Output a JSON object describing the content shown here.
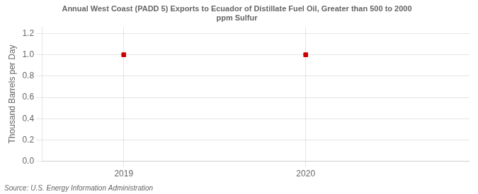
{
  "chart_data": {
    "type": "scatter",
    "title": "Annual West Coast (PADD 5) Exports to Ecuador of Distillate Fuel Oil, Greater than 500 to 2000\nppm Sulfur",
    "ylabel": "Thousand Barrels per Day",
    "source": "Source: U.S. Energy Information Administration",
    "x": [
      2019,
      2020
    ],
    "values": [
      1.0,
      1.0
    ],
    "color": "#cc0000",
    "marker": "square",
    "xlim": [
      2018.55,
      2020.9
    ],
    "ylim": [
      0.0,
      1.26
    ],
    "xticks": [
      2019,
      2020
    ],
    "yticks": [
      {
        "value": 0.0,
        "label": "0.0"
      },
      {
        "value": 0.2,
        "label": "0.2"
      },
      {
        "value": 0.4,
        "label": "0.4"
      },
      {
        "value": 0.6,
        "label": "0.6"
      },
      {
        "value": 0.8,
        "label": "0.8"
      },
      {
        "value": 1.0,
        "label": "1.0"
      },
      {
        "value": 1.2,
        "label": "1.2"
      }
    ],
    "grid": true
  }
}
